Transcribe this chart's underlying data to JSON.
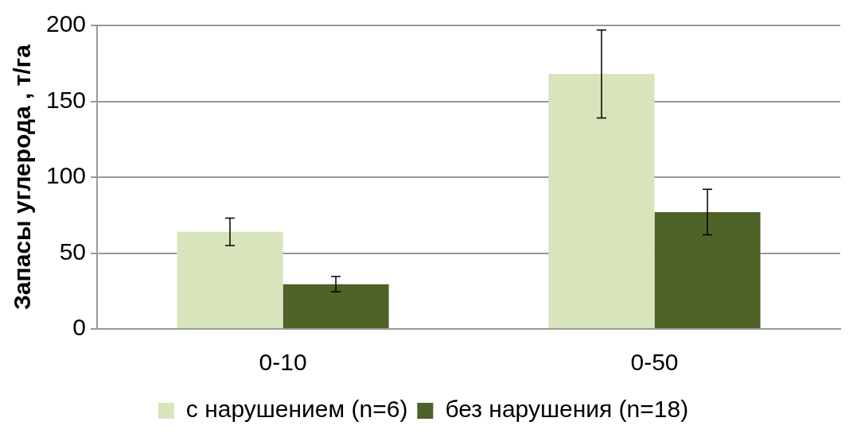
{
  "chart_data": {
    "type": "bar",
    "ylabel": "Запасы углерода , т/га",
    "categories": [
      "0-10",
      "0-50"
    ],
    "series": [
      {
        "name": "с нарушением (n=6)",
        "color": "#d8e4bc",
        "values": [
          64,
          168
        ],
        "errors": [
          9,
          29
        ]
      },
      {
        "name": "без нарушения (n=18)",
        "color": "#4f6228",
        "values": [
          29.5,
          77
        ],
        "errors": [
          5,
          15
        ]
      }
    ],
    "ylim": [
      0,
      200
    ],
    "yticks": [
      0,
      50,
      100,
      150,
      200
    ],
    "grid": "y",
    "legend": "bottom"
  }
}
